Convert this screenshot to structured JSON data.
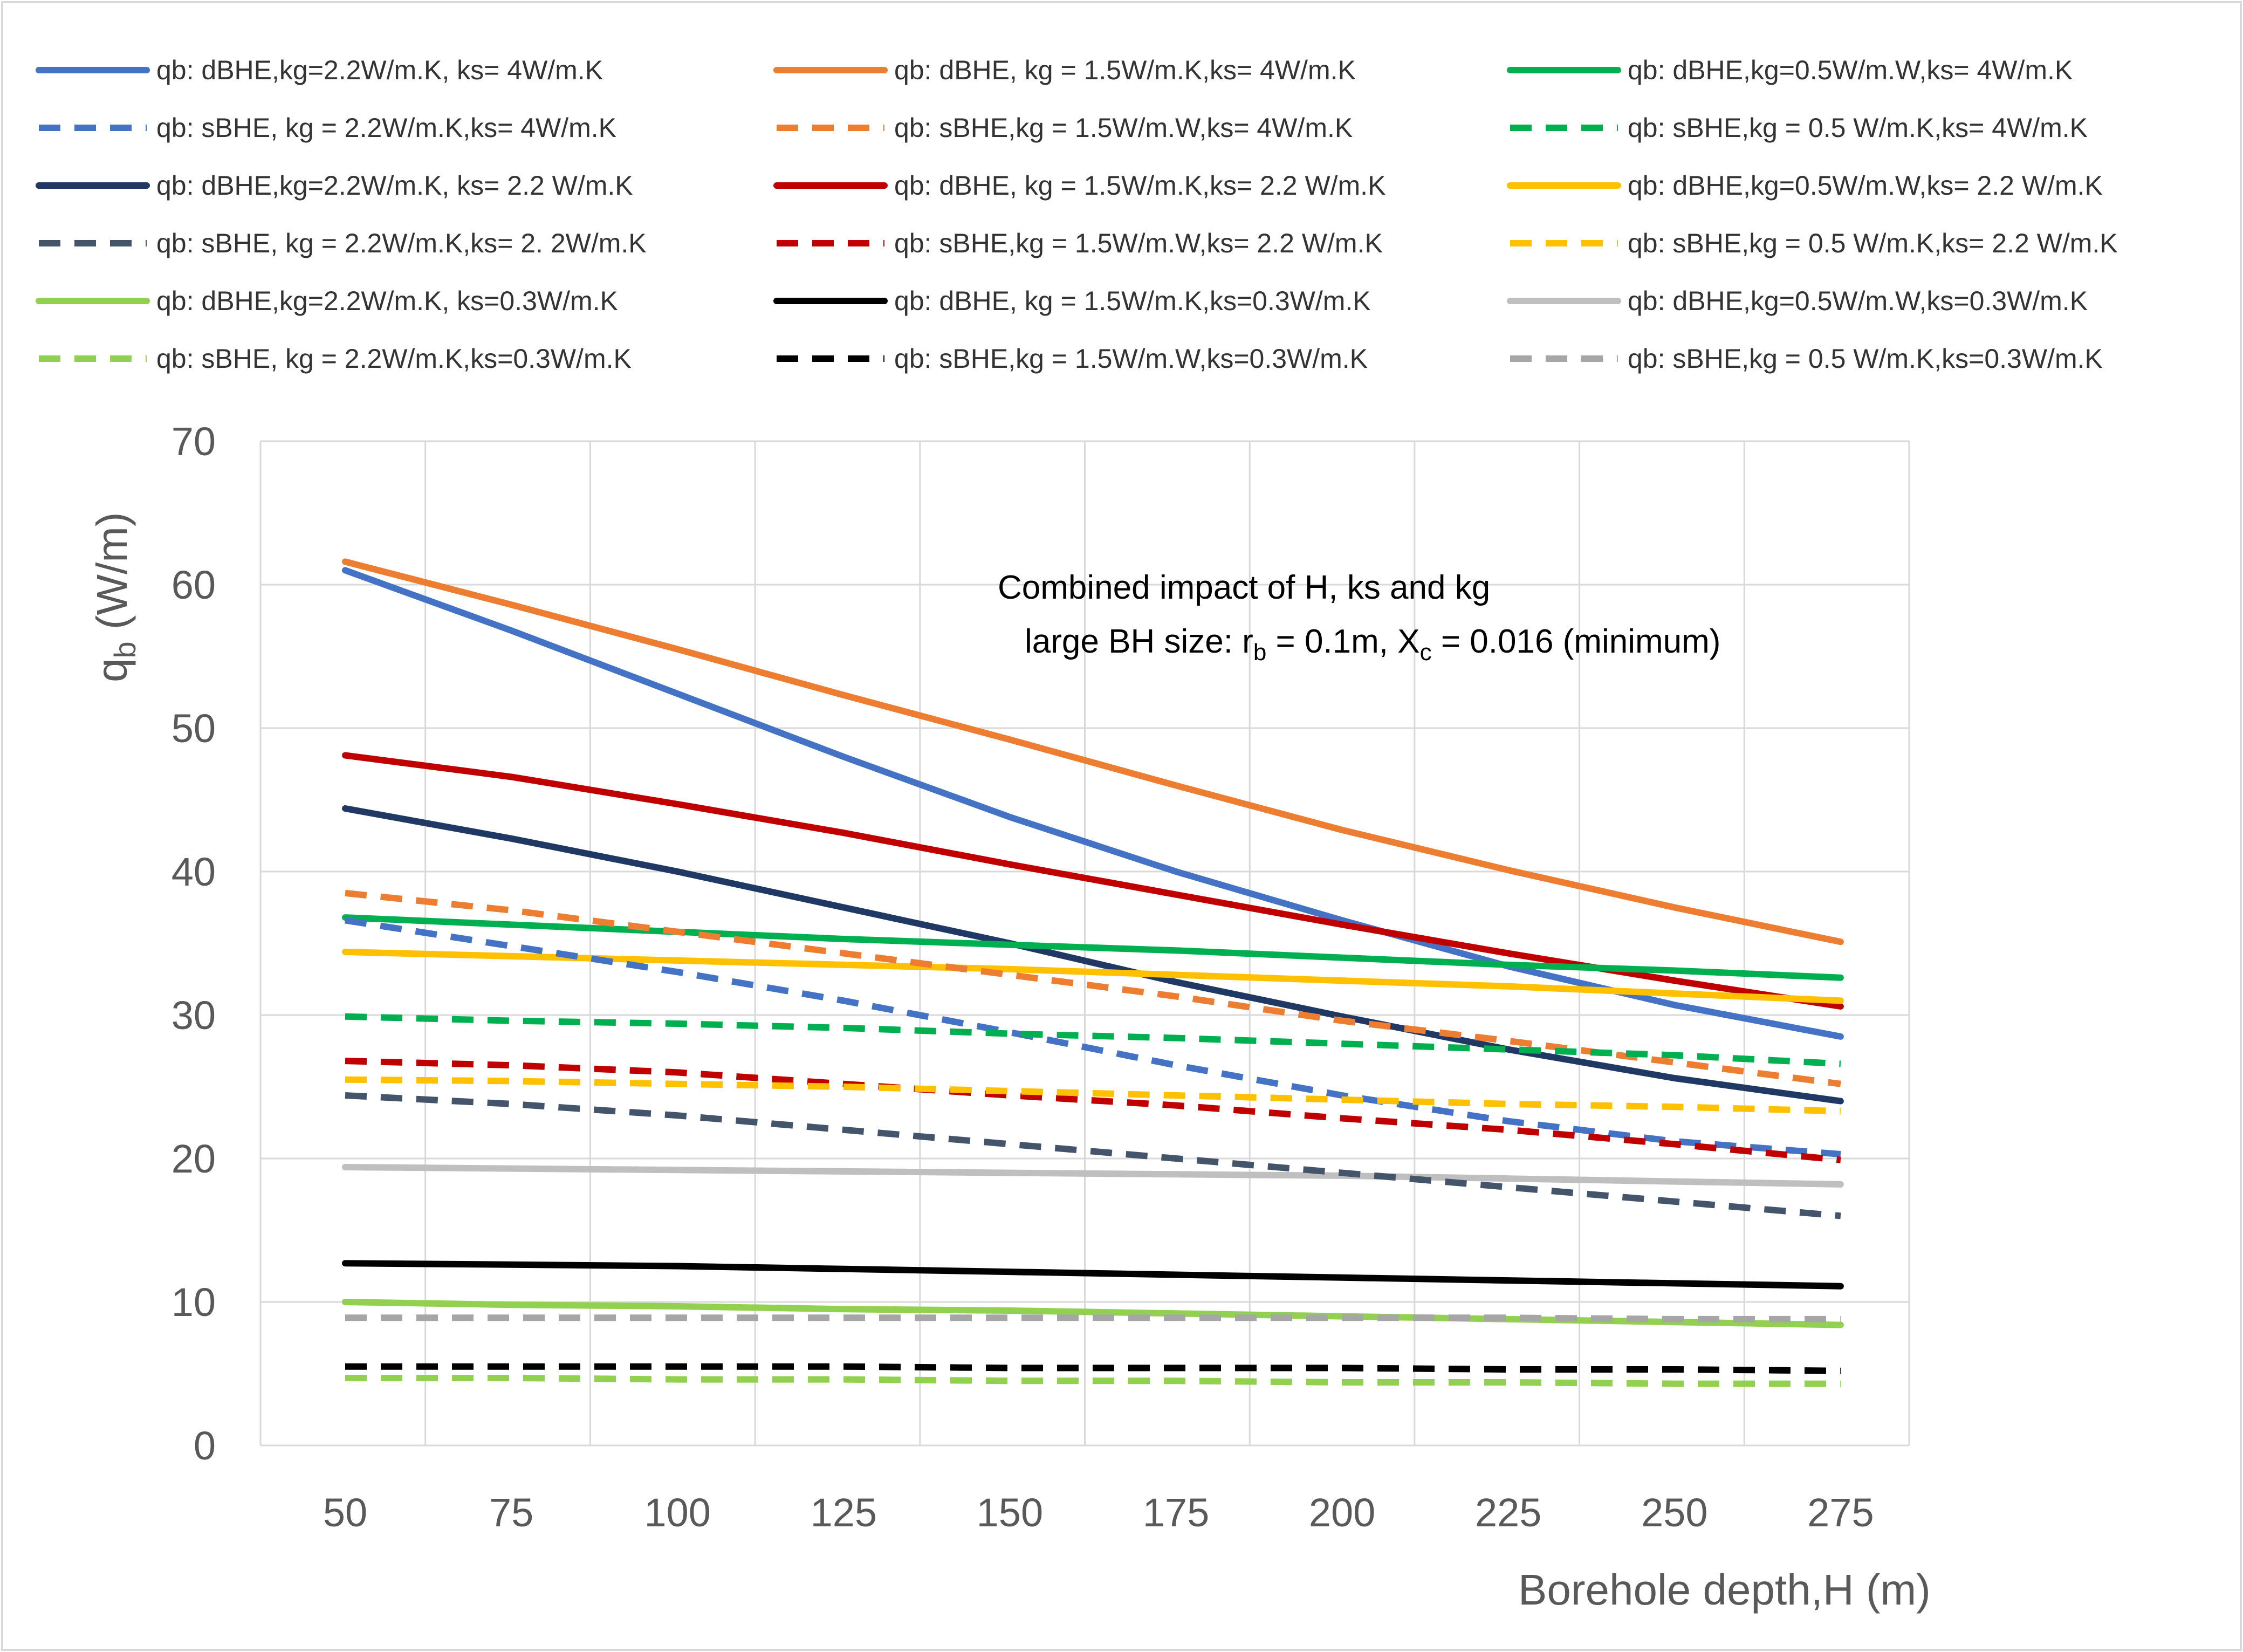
{
  "chart_data": {
    "type": "line",
    "title": "",
    "annotation_line1": "Combined impact of H, ks and kg",
    "annotation_line2": {
      "prefix": "large BH size: r",
      "sub1": "b",
      "mid": " = 0.1m, X",
      "sub2": "c",
      "suffix": " = 0.016 (minimum)"
    },
    "xlabel": "Borehole depth,H (m)",
    "ylabel": {
      "main": "q",
      "sub": "b",
      "unit": " (W/m)"
    },
    "x": [
      50,
      75,
      100,
      125,
      150,
      175,
      200,
      225,
      250,
      275
    ],
    "x_ticks": [
      "50",
      "75",
      "100",
      "125",
      "150",
      "175",
      "200",
      "225",
      "250",
      "275"
    ],
    "y_ticks": [
      "0",
      "10",
      "20",
      "30",
      "40",
      "50",
      "60",
      "70"
    ],
    "ylim": [
      0,
      70
    ],
    "grid": true,
    "legend_position": "top",
    "series": [
      {
        "name": "qb: dBHE,kg=2.2W/m.K, ks= 4W/m.K",
        "color": "#4472C4",
        "dash": false,
        "values": [
          61.0,
          56.8,
          52.4,
          48.0,
          43.8,
          40.0,
          36.6,
          33.4,
          30.7,
          28.5
        ]
      },
      {
        "name": "qb: sBHE, kg = 2.2W/m.K,ks= 4W/m.K",
        "color": "#4472C4",
        "dash": true,
        "values": [
          36.6,
          34.8,
          33.0,
          31.0,
          28.8,
          26.5,
          24.4,
          22.6,
          21.2,
          20.3
        ]
      },
      {
        "name": "qb: dBHE,kg=2.2W/m.K, ks= 2.2 W/m.K",
        "color": "#203864",
        "dash": false,
        "values": [
          44.4,
          42.3,
          40.0,
          37.5,
          35.0,
          32.3,
          29.9,
          27.6,
          25.6,
          24.0
        ]
      },
      {
        "name": "qb: sBHE, kg = 2.2W/m.K,ks= 2. 2W/m.K",
        "color": "#44546A",
        "dash": true,
        "values": [
          24.4,
          23.8,
          23.0,
          22.0,
          21.0,
          20.0,
          19.0,
          18.0,
          17.0,
          16.0
        ]
      },
      {
        "name": "qb: dBHE,kg=2.2W/m.K, ks=0.3W/m.K",
        "color": "#92D050",
        "dash": false,
        "values": [
          10.0,
          9.8,
          9.7,
          9.5,
          9.4,
          9.2,
          9.0,
          8.8,
          8.6,
          8.4
        ]
      },
      {
        "name": "qb: sBHE, kg = 2.2W/m.K,ks=0.3W/m.K",
        "color": "#92D050",
        "dash": true,
        "values": [
          4.7,
          4.7,
          4.6,
          4.6,
          4.5,
          4.5,
          4.4,
          4.4,
          4.3,
          4.3
        ]
      },
      {
        "name": "qb: dBHE, kg = 1.5W/m.K,ks= 4W/m.K",
        "color": "#ED7D31",
        "dash": false,
        "values": [
          61.6,
          58.6,
          55.5,
          52.3,
          49.2,
          46.0,
          42.9,
          40.1,
          37.5,
          35.1
        ]
      },
      {
        "name": "qb: sBHE,kg = 1.5W/m.W,ks= 4W/m.K",
        "color": "#ED7D31",
        "dash": true,
        "values": [
          38.5,
          37.3,
          35.8,
          34.3,
          32.8,
          31.3,
          29.6,
          28.2,
          26.7,
          25.2
        ]
      },
      {
        "name": "qb: dBHE, kg = 1.5W/m.K,ks= 2.2 W/m.K",
        "color": "#C00000",
        "dash": false,
        "values": [
          48.1,
          46.6,
          44.7,
          42.7,
          40.5,
          38.4,
          36.3,
          34.3,
          32.4,
          30.6
        ]
      },
      {
        "name": "qb: sBHE,kg = 1.5W/m.W,ks= 2.2 W/m.K",
        "color": "#C00000",
        "dash": true,
        "values": [
          26.8,
          26.5,
          26.0,
          25.2,
          24.4,
          23.7,
          22.8,
          22.0,
          21.0,
          19.9
        ]
      },
      {
        "name": "qb: dBHE, kg = 1.5W/m.K,ks=0.3W/m.K",
        "color": "#000000",
        "dash": false,
        "values": [
          12.7,
          12.6,
          12.5,
          12.3,
          12.1,
          11.9,
          11.7,
          11.5,
          11.3,
          11.1
        ]
      },
      {
        "name": "qb: sBHE,kg = 1.5W/m.W,ks=0.3W/m.K",
        "color": "#000000",
        "dash": true,
        "values": [
          5.5,
          5.5,
          5.5,
          5.5,
          5.4,
          5.4,
          5.4,
          5.3,
          5.3,
          5.2
        ]
      },
      {
        "name": "qb: dBHE,kg=0.5W/m.W,ks= 4W/m.K",
        "color": "#00B050",
        "dash": false,
        "values": [
          36.8,
          36.3,
          35.8,
          35.3,
          34.9,
          34.5,
          34.0,
          33.5,
          33.1,
          32.6
        ]
      },
      {
        "name": "qb: sBHE,kg = 0.5 W/m.K,ks= 4W/m.K",
        "color": "#00B050",
        "dash": true,
        "values": [
          29.9,
          29.6,
          29.4,
          29.1,
          28.7,
          28.4,
          28.0,
          27.6,
          27.2,
          26.6
        ]
      },
      {
        "name": "qb: dBHE,kg=0.5W/m.W,ks= 2.2 W/m.K",
        "color": "#FFC000",
        "dash": false,
        "values": [
          34.4,
          34.1,
          33.8,
          33.5,
          33.2,
          32.8,
          32.4,
          32.0,
          31.5,
          31.0
        ]
      },
      {
        "name": "qb: sBHE,kg = 0.5 W/m.K,ks= 2.2 W/m.K",
        "color": "#FFC000",
        "dash": true,
        "values": [
          25.5,
          25.4,
          25.2,
          25.0,
          24.7,
          24.4,
          24.1,
          23.8,
          23.6,
          23.3
        ]
      },
      {
        "name": "qb: dBHE,kg=0.5W/m.W,ks=0.3W/m.K",
        "color": "#BFBFBF",
        "dash": false,
        "values": [
          19.4,
          19.3,
          19.2,
          19.1,
          19.0,
          18.9,
          18.8,
          18.6,
          18.4,
          18.2
        ]
      },
      {
        "name": "qb: sBHE,kg = 0.5 W/m.K,ks=0.3W/m.K",
        "color": "#A6A6A6",
        "dash": true,
        "values": [
          8.9,
          8.9,
          8.9,
          8.9,
          8.9,
          8.9,
          8.9,
          8.9,
          8.8,
          8.8
        ]
      }
    ]
  }
}
